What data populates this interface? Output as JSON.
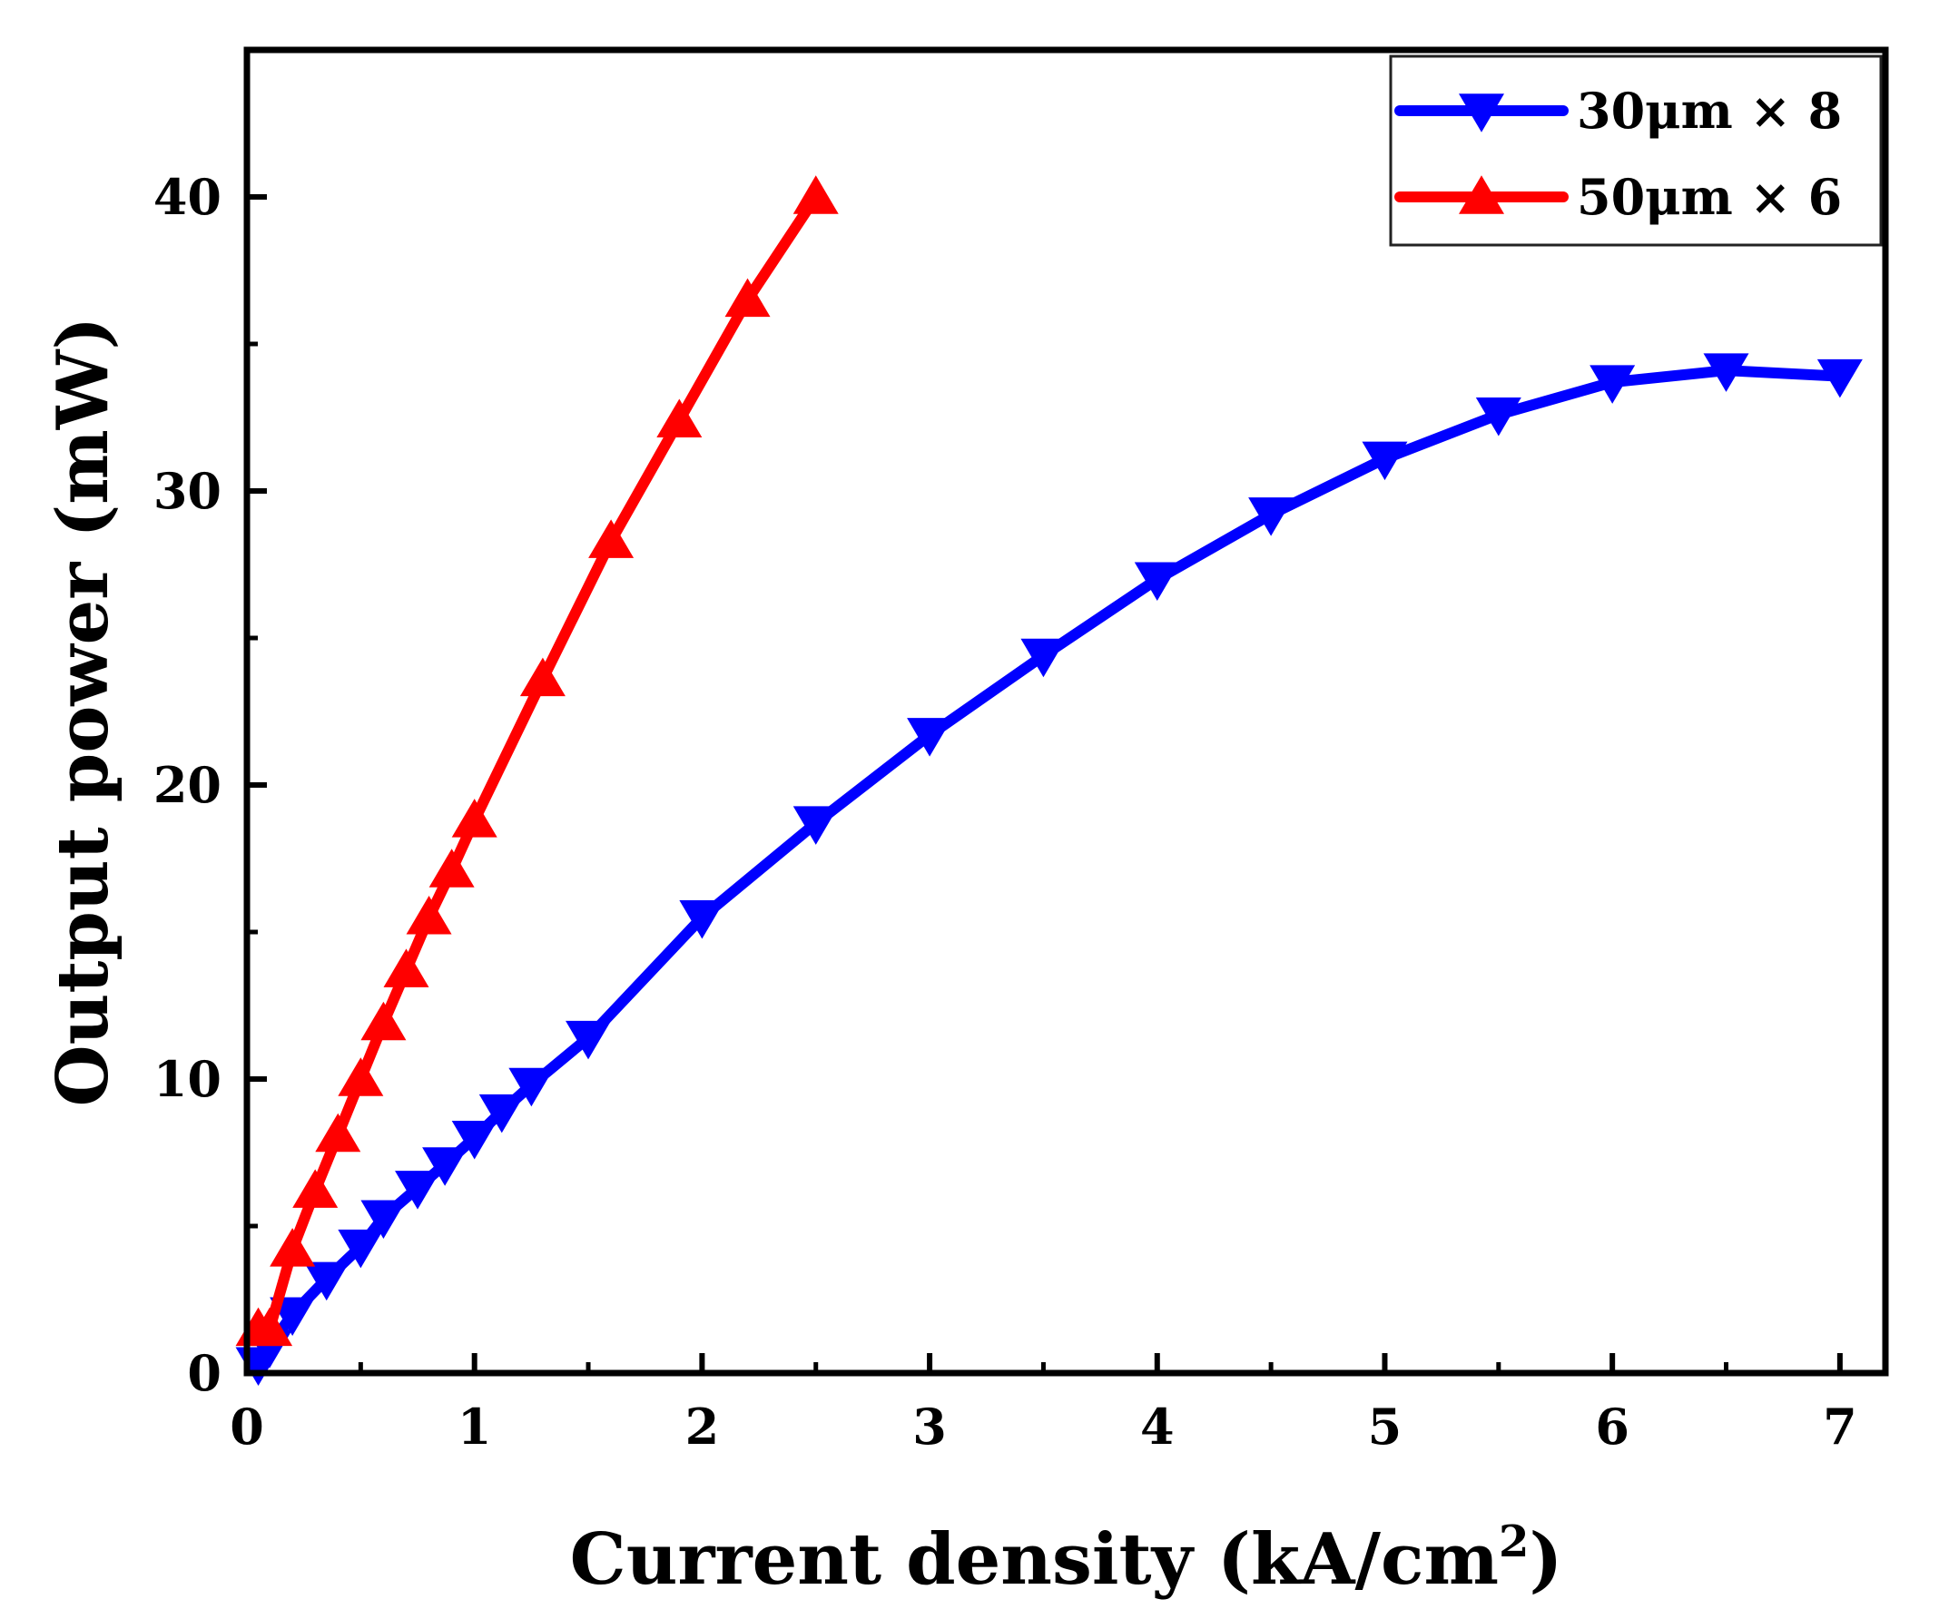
{
  "chart_data": {
    "type": "line",
    "title": "",
    "xlabel": "Current density (kA/cm",
    "xlabel_superscript": "2",
    "xlabel_suffix": ")",
    "ylabel": "Output power (mW)",
    "xlim": [
      0,
      7.2
    ],
    "ylim": [
      0,
      45
    ],
    "xticks": [
      0,
      1,
      2,
      3,
      4,
      5,
      6,
      7
    ],
    "yticks": [
      0,
      10,
      20,
      30,
      40
    ],
    "grid": false,
    "legend_position": "top-right",
    "series": [
      {
        "name": "30μm × 8",
        "color": "#0000ff",
        "marker": "triangle-down",
        "x": [
          0.05,
          0.1,
          0.2,
          0.35,
          0.5,
          0.6,
          0.75,
          0.87,
          1.0,
          1.12,
          1.25,
          1.5,
          2.0,
          2.5,
          3.0,
          3.5,
          4.0,
          4.5,
          5.0,
          5.5,
          6.0,
          6.5,
          7.0
        ],
        "y": [
          0.3,
          0.9,
          2.0,
          3.2,
          4.3,
          5.3,
          6.3,
          7.1,
          8.0,
          8.9,
          9.8,
          11.4,
          15.5,
          18.7,
          21.7,
          24.4,
          27.0,
          29.2,
          31.1,
          32.6,
          33.7,
          34.1,
          33.9
        ]
      },
      {
        "name": "50μm × 6",
        "color": "#ff0000",
        "marker": "triangle-up",
        "x": [
          0.05,
          0.1,
          0.2,
          0.3,
          0.4,
          0.5,
          0.6,
          0.7,
          0.8,
          0.9,
          1.0,
          1.3,
          1.6,
          1.9,
          2.2,
          2.5
        ],
        "y": [
          1.5,
          1.5,
          4.2,
          6.2,
          8.1,
          10.0,
          11.9,
          13.7,
          15.5,
          17.1,
          18.8,
          23.6,
          28.3,
          32.4,
          36.5,
          40.0
        ]
      }
    ]
  }
}
